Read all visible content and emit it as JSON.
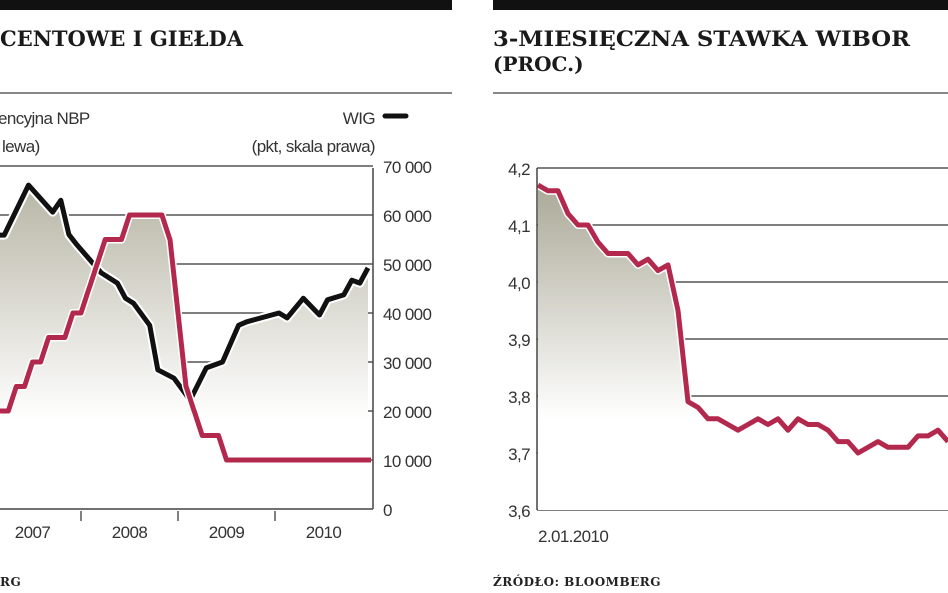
{
  "left_panel": {
    "title": "CENTOWE I GIEŁDA",
    "legend_rate_line1": "encyjna NBP",
    "legend_rate_line2": "lewa)",
    "legend_wig_line1": "WIG",
    "legend_wig_line2": "(pkt, skala prawa)",
    "source": "RG"
  },
  "right_panel": {
    "title": "3-MIESIĘCZNA STAWKA WIBOR",
    "subtitle": "(PROC.)",
    "x_start_label": "2.01.2010",
    "source": "ŹRÓDŁO: BLOOMBERG"
  },
  "colors": {
    "rate": "#b3294e",
    "wig": "#111111",
    "fill_top": "#b9b7a6",
    "grid": "#555555",
    "bar": "#111111"
  },
  "chart_data": [
    {
      "type": "line",
      "title": "CENTOWE I GIEŁDA",
      "grid": true,
      "x_tick_labels": [
        "2007",
        "2008",
        "2009",
        "2010"
      ],
      "y_right": {
        "label": "WIG (pkt, skala prawa)",
        "ticks": [
          "0",
          "10 000",
          "20 000",
          "30 000",
          "40 000",
          "50 000",
          "60 000",
          "70 000"
        ],
        "range": [
          0,
          70000
        ]
      },
      "y_left_range": [
        3.0,
        6.5
      ],
      "series": [
        {
          "name": "WIG",
          "axis": "right",
          "x": [
            "2007-03",
            "2007-06",
            "2007-09",
            "2007-10",
            "2007-11",
            "2007-12",
            "2008-03",
            "2008-05",
            "2008-06",
            "2008-07",
            "2008-09",
            "2008-10",
            "2008-12",
            "2009-02",
            "2009-04",
            "2009-06",
            "2009-08",
            "2009-09",
            "2010-01",
            "2010-02",
            "2010-04",
            "2010-06",
            "2010-07",
            "2010-09",
            "2010-10",
            "2010-11",
            "2010-12"
          ],
          "values": [
            55900,
            66100,
            60600,
            63000,
            56000,
            53900,
            48200,
            46100,
            43000,
            42000,
            37500,
            28400,
            26700,
            22200,
            28800,
            30000,
            37500,
            38200,
            40000,
            39000,
            43000,
            39600,
            42700,
            43700,
            46700,
            46100,
            49200
          ]
        },
        {
          "name": "encyjna NBP (lewa)",
          "axis": "left",
          "step": true,
          "x": [
            "2007-01",
            "2007-04",
            "2007-06",
            "2007-08",
            "2007-11",
            "2008-01",
            "2008-02",
            "2008-03",
            "2008-06",
            "2008-11",
            "2008-12",
            "2009-01",
            "2009-02",
            "2009-03",
            "2009-06",
            "2010-12"
          ],
          "values": [
            4.0,
            4.25,
            4.5,
            4.75,
            5.0,
            5.25,
            5.5,
            5.75,
            6.0,
            5.75,
            5.0,
            4.25,
            4.0,
            3.75,
            3.5,
            3.5
          ]
        }
      ]
    },
    {
      "type": "line",
      "title": "3-MIESIĘCZNA STAWKA WIBOR (PROC.)",
      "grid": true,
      "x_start": "2.01.2010",
      "y_ticks": [
        "3,6",
        "3,7",
        "3,8",
        "3,9",
        "4,0",
        "4,1",
        "4,2"
      ],
      "ylim": [
        3.6,
        4.2
      ],
      "values": [
        4.17,
        4.16,
        4.16,
        4.12,
        4.1,
        4.1,
        4.07,
        4.05,
        4.05,
        4.05,
        4.03,
        4.04,
        4.02,
        4.03,
        3.95,
        3.79,
        3.78,
        3.76,
        3.76,
        3.75,
        3.74,
        3.75,
        3.76,
        3.75,
        3.76,
        3.74,
        3.76,
        3.75,
        3.75,
        3.74,
        3.72,
        3.72,
        3.7,
        3.71,
        3.72,
        3.71,
        3.71,
        3.71,
        3.73,
        3.73,
        3.74,
        3.72
      ]
    }
  ]
}
